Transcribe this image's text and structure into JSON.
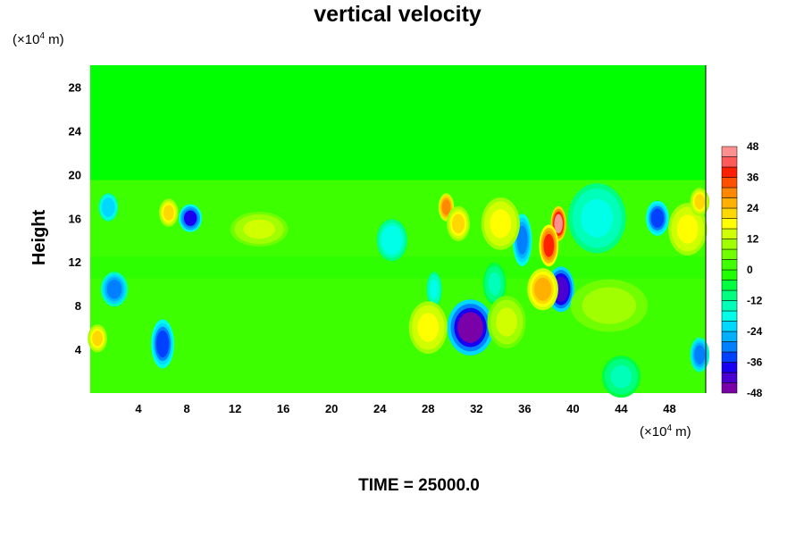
{
  "chart_data": {
    "type": "heatmap",
    "title": "vertical velocity",
    "ylabel": "Height",
    "xlabel": "",
    "x_unit": {
      "prefix": "(×10",
      "exp": "4",
      "suffix": " m)"
    },
    "y_unit": {
      "prefix": "(×10",
      "exp": "4",
      "suffix": " m)"
    },
    "xlim": [
      0,
      51
    ],
    "ylim": [
      0,
      30
    ],
    "x_ticks": [
      4,
      8,
      12,
      16,
      20,
      24,
      28,
      32,
      36,
      40,
      44,
      48
    ],
    "y_ticks": [
      4,
      8,
      12,
      16,
      20,
      24,
      28
    ],
    "grid": false,
    "colorbar": {
      "range": [
        -48,
        48
      ],
      "step": 4,
      "tick_labels": [
        48,
        36,
        24,
        12,
        0,
        -12,
        -24,
        -36,
        -48
      ],
      "colors": [
        "#7a00a8",
        "#4a00d0",
        "#1a00f0",
        "#0040ff",
        "#0080ff",
        "#00b0ff",
        "#00d8ff",
        "#00ffe8",
        "#00ffb8",
        "#00ff80",
        "#00ff40",
        "#20ff00",
        "#40ff00",
        "#70ff00",
        "#a0ff00",
        "#d0ff00",
        "#ffff00",
        "#ffd800",
        "#ffb000",
        "#ff8800",
        "#ff5000",
        "#ff2000",
        "#ff5a5a",
        "#ff9090"
      ]
    },
    "background_value": 0,
    "features": [
      {
        "x": 31.5,
        "y": 6,
        "value": -46,
        "rx": 1.2,
        "ry": 1.6
      },
      {
        "x": 39,
        "y": 9.5,
        "value": -44,
        "rx": 0.7,
        "ry": 1.3
      },
      {
        "x": 6,
        "y": 4.5,
        "value": -34,
        "rx": 0.6,
        "ry": 1.4
      },
      {
        "x": 8.3,
        "y": 16,
        "value": -38,
        "rx": 0.6,
        "ry": 0.8
      },
      {
        "x": 2,
        "y": 9.5,
        "value": -30,
        "rx": 0.7,
        "ry": 1
      },
      {
        "x": 47,
        "y": 16,
        "value": -34,
        "rx": 0.6,
        "ry": 1
      },
      {
        "x": 35.8,
        "y": 14,
        "value": -32,
        "rx": 0.5,
        "ry": 1.5
      },
      {
        "x": 1.5,
        "y": 17,
        "value": -24,
        "rx": 0.5,
        "ry": 0.8
      },
      {
        "x": 25,
        "y": 14,
        "value": -20,
        "rx": 0.8,
        "ry": 1.2
      },
      {
        "x": 42,
        "y": 16,
        "value": -18,
        "rx": 1.5,
        "ry": 2
      },
      {
        "x": 50.5,
        "y": 3.5,
        "value": -30,
        "rx": 0.5,
        "ry": 1
      },
      {
        "x": 44,
        "y": 1.5,
        "value": -14,
        "rx": 1,
        "ry": 1.2
      },
      {
        "x": 28.5,
        "y": 9.5,
        "value": -18,
        "rx": 0.4,
        "ry": 1
      },
      {
        "x": 33.5,
        "y": 10,
        "value": -14,
        "rx": 0.6,
        "ry": 1.2
      },
      {
        "x": 38.8,
        "y": 15.5,
        "value": 46,
        "rx": 0.4,
        "ry": 1
      },
      {
        "x": 38,
        "y": 13.5,
        "value": 38,
        "rx": 0.5,
        "ry": 1.2
      },
      {
        "x": 37.5,
        "y": 9.5,
        "value": 26,
        "rx": 0.8,
        "ry": 1.2
      },
      {
        "x": 29.5,
        "y": 17,
        "value": 30,
        "rx": 0.4,
        "ry": 0.8
      },
      {
        "x": 30.5,
        "y": 15.5,
        "value": 22,
        "rx": 0.6,
        "ry": 1
      },
      {
        "x": 34,
        "y": 15.5,
        "value": 18,
        "rx": 1,
        "ry": 1.5
      },
      {
        "x": 49.5,
        "y": 15,
        "value": 18,
        "rx": 1,
        "ry": 1.5
      },
      {
        "x": 50.5,
        "y": 17.5,
        "value": 20,
        "rx": 0.5,
        "ry": 0.8
      },
      {
        "x": 6.5,
        "y": 16.5,
        "value": 20,
        "rx": 0.5,
        "ry": 0.8
      },
      {
        "x": 0.6,
        "y": 5,
        "value": 22,
        "rx": 0.5,
        "ry": 0.8
      },
      {
        "x": 28,
        "y": 6,
        "value": 18,
        "rx": 1,
        "ry": 1.5
      },
      {
        "x": 34.5,
        "y": 6.5,
        "value": 14,
        "rx": 1,
        "ry": 1.5
      },
      {
        "x": 14,
        "y": 15,
        "value": 12,
        "rx": 1.5,
        "ry": 1
      },
      {
        "x": 43,
        "y": 8,
        "value": 10,
        "rx": 2,
        "ry": 1.5
      }
    ]
  },
  "footer": {
    "time_label": "TIME = 25000.0"
  }
}
